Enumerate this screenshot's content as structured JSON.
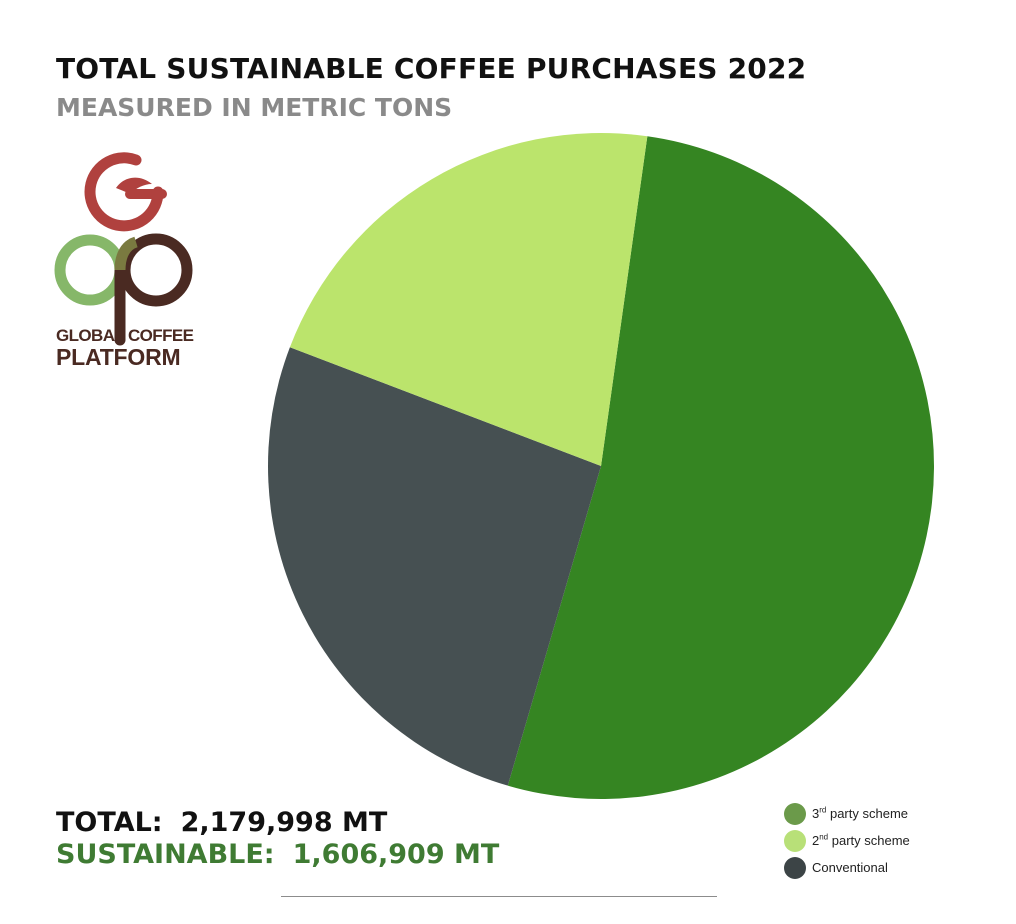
{
  "header": {
    "title": "TOTAL SUSTAINABLE COFFEE PURCHASES 2022",
    "subtitle": "MEASURED IN METRIC TONS"
  },
  "logo": {
    "line1": "GLOBAL COFFEE",
    "line2": "PLATFORM",
    "colors": {
      "g": "#b0413e",
      "c": "#86b769",
      "p": "#4a2a22"
    }
  },
  "totals": {
    "total_label": "TOTAL:",
    "total_value": "2,179,998 MT",
    "sustainable_label": "SUSTAINABLE:",
    "sustainable_value": "1,606,909 MT"
  },
  "legend": [
    {
      "prefix": "3",
      "sup": "rd",
      "text": " party scheme",
      "color": "#6b9a4a"
    },
    {
      "prefix": "2",
      "sup": "nd",
      "text": " party scheme",
      "color": "#b8e078"
    },
    {
      "prefix": "",
      "sup": "",
      "text": "Conventional",
      "color": "#3c4446"
    }
  ],
  "chart_data": {
    "type": "pie",
    "title": "TOTAL SUSTAINABLE COFFEE PURCHASES 2022",
    "subtitle": "MEASURED IN METRIC TONS",
    "slices": [
      {
        "label": "3rd party scheme",
        "value": 1140000,
        "color": "#358522"
      },
      {
        "label": "Conventional",
        "value": 573089,
        "color": "#465052"
      },
      {
        "label": "2nd party scheme",
        "value": 466909,
        "color": "#bbe46c"
      }
    ],
    "total": 2179998,
    "legend_position": "bottom-right"
  }
}
